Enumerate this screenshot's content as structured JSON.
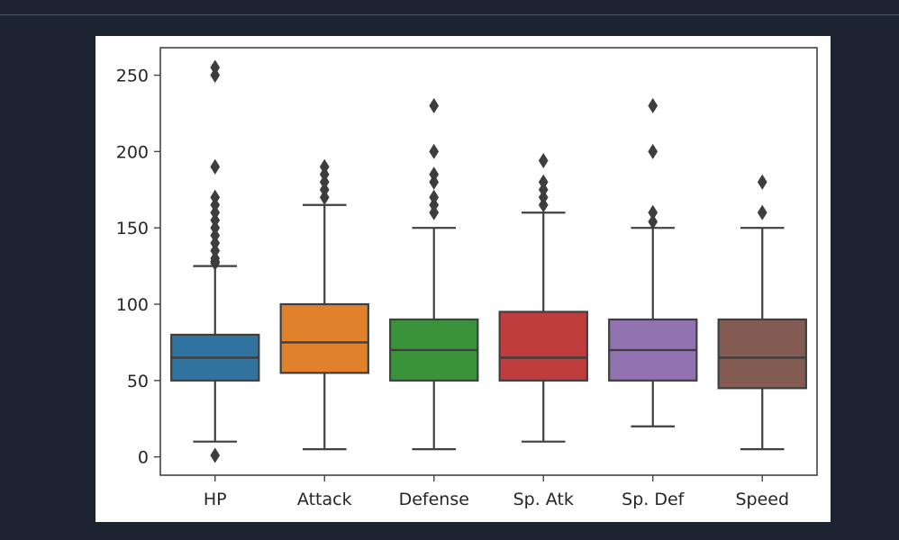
{
  "chart_data": {
    "type": "box",
    "title": "",
    "xlabel": "",
    "ylabel": "",
    "ylim": [
      -12,
      268
    ],
    "yticks": [
      0,
      50,
      100,
      150,
      200,
      250
    ],
    "grid": false,
    "categories": [
      "HP",
      "Attack",
      "Defense",
      "Sp. Atk",
      "Sp. Def",
      "Speed"
    ],
    "boxes": [
      {
        "name": "HP",
        "color": "#3274a1",
        "whisker_low": 10,
        "q1": 50,
        "median": 65,
        "q3": 80,
        "whisker_high": 125,
        "outliers": [
          1,
          127,
          128,
          130,
          135,
          140,
          145,
          150,
          155,
          160,
          165,
          170,
          190,
          250,
          255
        ]
      },
      {
        "name": "Attack",
        "color": "#e1812c",
        "whisker_low": 5,
        "q1": 55,
        "median": 75,
        "q3": 100,
        "whisker_high": 165,
        "outliers": [
          170,
          175,
          180,
          185,
          190
        ]
      },
      {
        "name": "Defense",
        "color": "#3a923a",
        "whisker_low": 5,
        "q1": 50,
        "median": 70,
        "q3": 90,
        "whisker_high": 150,
        "outliers": [
          160,
          165,
          170,
          180,
          185,
          200,
          230
        ]
      },
      {
        "name": "Sp. Atk",
        "color": "#c03d3e",
        "whisker_low": 10,
        "q1": 50,
        "median": 65,
        "q3": 95,
        "whisker_high": 160,
        "outliers": [
          165,
          170,
          175,
          180,
          194
        ]
      },
      {
        "name": "Sp. Def",
        "color": "#9372b2",
        "whisker_low": 20,
        "q1": 50,
        "median": 70,
        "q3": 90,
        "whisker_high": 150,
        "outliers": [
          154,
          160,
          200,
          230
        ]
      },
      {
        "name": "Speed",
        "color": "#845b53",
        "whisker_low": 5,
        "q1": 45,
        "median": 65,
        "q3": 90,
        "whisker_high": 150,
        "outliers": [
          160,
          180
        ]
      }
    ]
  }
}
